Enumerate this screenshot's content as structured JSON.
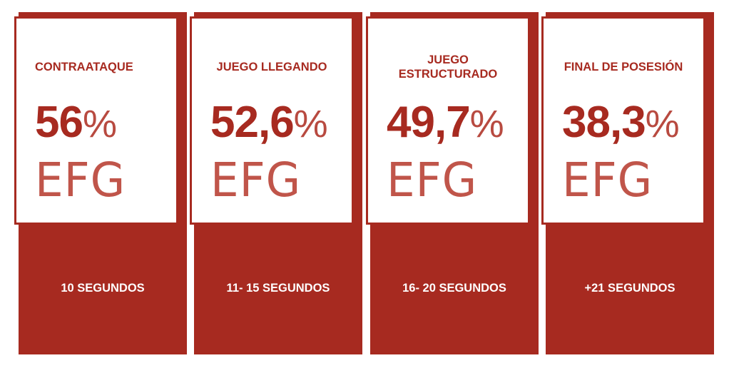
{
  "accent_color": "#a72a20",
  "cards": [
    {
      "title": "CONTRAATAQUE",
      "value": "56",
      "percent": "%",
      "unit": "EFG",
      "label": "10 SEGUNDOS"
    },
    {
      "title": "JUEGO LLEGANDO",
      "value": "52,6",
      "percent": "%",
      "unit": "EFG",
      "label": "11- 15 SEGUNDOS"
    },
    {
      "title": "JUEGO ESTRUCTURADO",
      "value": "49,7",
      "percent": "%",
      "unit": "EFG",
      "label": "16- 20 SEGUNDOS"
    },
    {
      "title": "FINAL DE POSESIÓN",
      "value": "38,3",
      "percent": "%",
      "unit": "EFG",
      "label": "+21 SEGUNDOS"
    }
  ]
}
